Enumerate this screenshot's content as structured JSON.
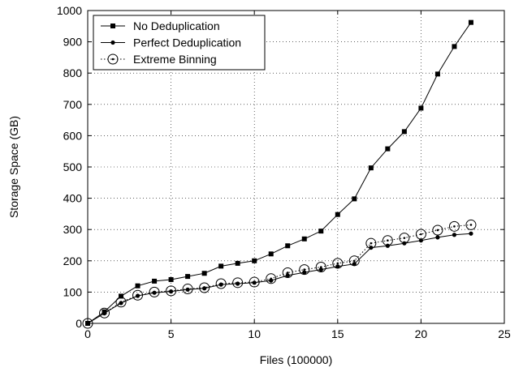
{
  "chart_data": {
    "type": "line",
    "title": "",
    "xlabel": "Files (100000)",
    "ylabel": "Storage Space (GB)",
    "xlim": [
      0,
      25
    ],
    "ylim": [
      0,
      1000
    ],
    "x_ticks": [
      0,
      5,
      10,
      15,
      20,
      25
    ],
    "y_ticks": [
      0,
      100,
      200,
      300,
      400,
      500,
      600,
      700,
      800,
      900,
      1000
    ],
    "grid": true,
    "grid_style": "dotted",
    "legend_position": "top-left",
    "series": [
      {
        "name": "No Deduplication",
        "marker": "square",
        "line_style": "solid",
        "x": [
          0,
          1,
          2,
          3,
          4,
          5,
          6,
          7,
          8,
          9,
          10,
          11,
          12,
          13,
          14,
          15,
          16,
          17,
          18,
          19,
          20,
          21,
          22,
          23
        ],
        "y": [
          0,
          37,
          87,
          120,
          135,
          140,
          150,
          160,
          183,
          192,
          200,
          222,
          248,
          270,
          295,
          348,
          398,
          497,
          558,
          613,
          688,
          797,
          885,
          962
        ]
      },
      {
        "name": "Perfect Deduplication",
        "marker": "dot",
        "line_style": "solid",
        "x": [
          0,
          1,
          2,
          3,
          4,
          5,
          6,
          7,
          8,
          9,
          10,
          11,
          12,
          13,
          14,
          15,
          16,
          17,
          18,
          19,
          20,
          21,
          22,
          23
        ],
        "y": [
          0,
          32,
          65,
          88,
          98,
          102,
          108,
          112,
          124,
          127,
          130,
          137,
          153,
          163,
          172,
          182,
          190,
          242,
          248,
          256,
          265,
          275,
          283,
          287
        ]
      },
      {
        "name": "Extreme Binning",
        "marker": "circle-dot",
        "line_style": "dotted",
        "x": [
          0,
          1,
          2,
          3,
          4,
          5,
          6,
          7,
          8,
          9,
          10,
          11,
          12,
          13,
          14,
          15,
          16,
          17,
          18,
          19,
          20,
          21,
          22,
          23
        ],
        "y": [
          0,
          33,
          68,
          90,
          100,
          104,
          110,
          114,
          127,
          130,
          132,
          143,
          162,
          172,
          180,
          192,
          200,
          256,
          265,
          273,
          285,
          298,
          310,
          315
        ]
      }
    ]
  }
}
